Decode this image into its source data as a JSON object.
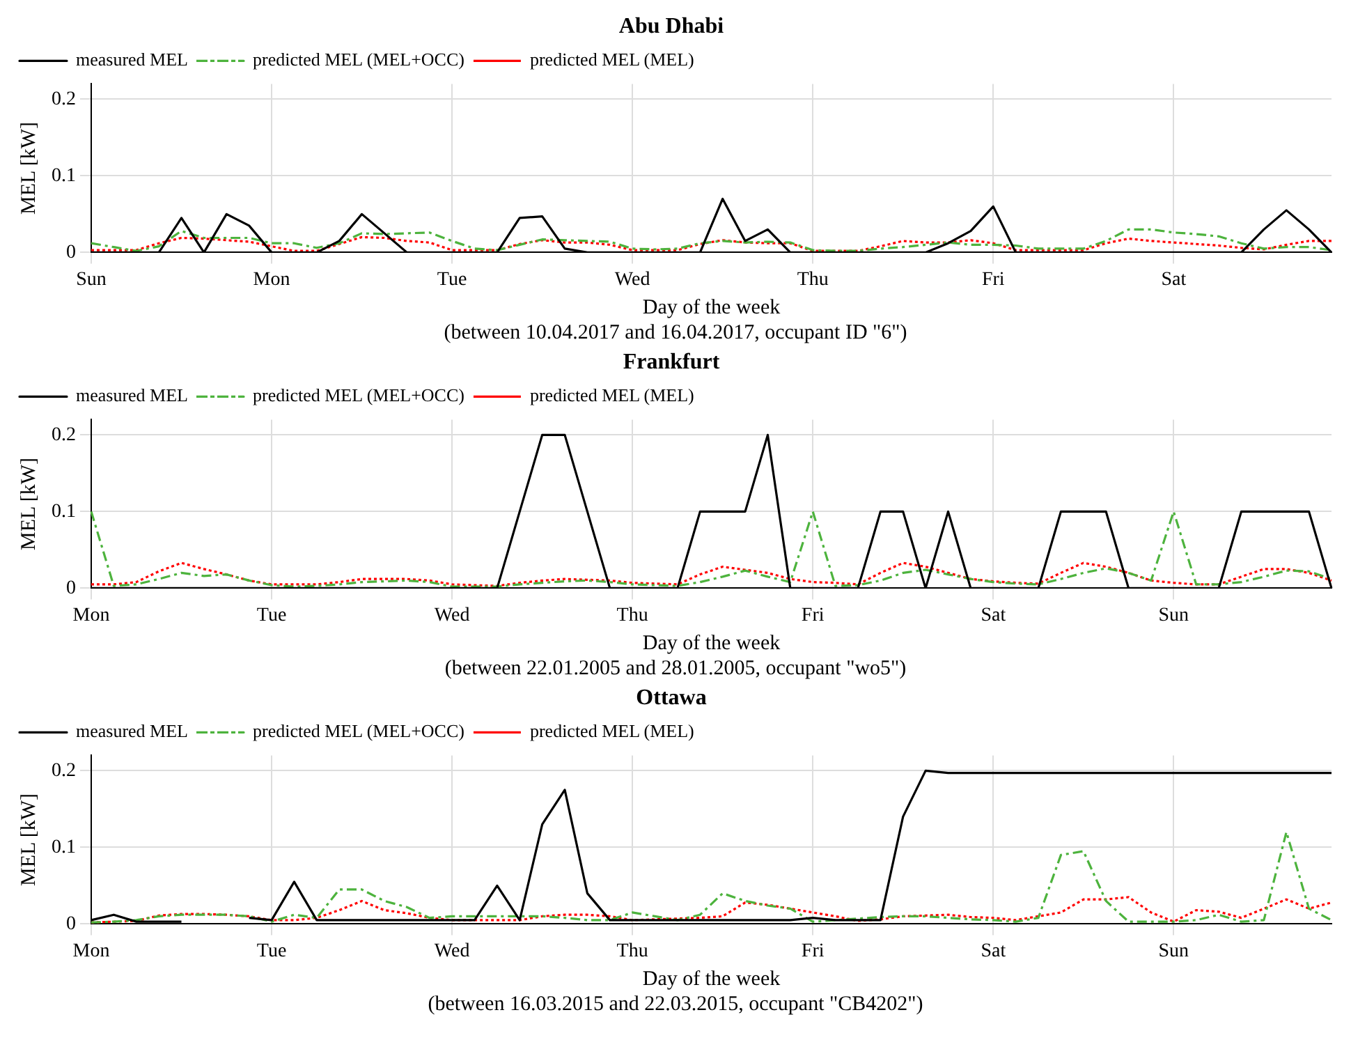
{
  "chart_data": [
    {
      "type": "line",
      "title": "Abu Dhabi",
      "xlabel": "Day of the week",
      "ylabel": "MEL [kW]",
      "annotations": [
        "(between 10.04.2017 and 16.04.2017, occupant ID \"6\")"
      ],
      "categories": [
        "Sun",
        null,
        null,
        null,
        null,
        null,
        null,
        null,
        "Mon",
        null,
        null,
        null,
        null,
        null,
        null,
        null,
        "Tue",
        null,
        null,
        null,
        null,
        null,
        null,
        null,
        "Wed",
        null,
        null,
        null,
        null,
        null,
        null,
        null,
        "Thu",
        null,
        null,
        null,
        null,
        null,
        null,
        null,
        "Fri",
        null,
        null,
        null,
        null,
        null,
        null,
        null,
        "Sat",
        null,
        null,
        null,
        null,
        null,
        null,
        null
      ],
      "ylim": [
        0,
        0.22
      ],
      "yticks": [
        0,
        0.1,
        0.2
      ],
      "grid": true,
      "legend": "top left",
      "series": [
        {
          "name": "measured MEL",
          "color": "#000000",
          "line_style": "solid",
          "values": [
            0,
            0,
            0,
            0,
            0.045,
            0,
            0.05,
            0.035,
            0,
            0,
            0,
            0.015,
            0.05,
            0.025,
            0,
            0,
            0,
            0,
            0,
            0.045,
            0.047,
            0.005,
            0,
            0,
            0,
            0,
            0,
            0,
            0.07,
            0.015,
            0.03,
            0,
            0,
            0,
            0,
            0,
            0,
            0,
            0.012,
            0.028,
            0.06,
            0,
            0,
            0,
            0,
            0,
            0,
            0,
            0,
            0,
            0,
            0,
            0.03,
            0.055,
            0.03,
            0
          ]
        },
        {
          "name": "predicted MEL (MEL+OCC)",
          "color": "#4db33d",
          "line_style": "dashed",
          "values": [
            0.012,
            0.007,
            0.002,
            0.008,
            0.028,
            0.019,
            0.019,
            0.019,
            0.012,
            0.012,
            0.006,
            0.012,
            0.025,
            0.024,
            0.025,
            0.026,
            0.015,
            0.005,
            0.003,
            0.01,
            0.017,
            0.016,
            0.015,
            0.014,
            0.005,
            0.004,
            0.005,
            0.012,
            0.015,
            0.013,
            0.014,
            0.013,
            0.003,
            0.002,
            0.002,
            0.005,
            0.007,
            0.01,
            0.013,
            0.01,
            0.01,
            0.009,
            0.005,
            0.005,
            0.005,
            0.015,
            0.03,
            0.03,
            0.026,
            0.024,
            0.021,
            0.012,
            0.005,
            0.007,
            0.007,
            0.003
          ]
        },
        {
          "name": "predicted MEL (MEL)",
          "color": "#ff0000",
          "line_style": "dotted",
          "values": [
            0.003,
            0.003,
            0.003,
            0.012,
            0.019,
            0.018,
            0.016,
            0.014,
            0.008,
            0.002,
            0.002,
            0.011,
            0.02,
            0.019,
            0.015,
            0.013,
            0.003,
            0.003,
            0.003,
            0.011,
            0.016,
            0.013,
            0.013,
            0.01,
            0.003,
            0.003,
            0.003,
            0.011,
            0.016,
            0.013,
            0.012,
            0.012,
            0.002,
            0.002,
            0.002,
            0.008,
            0.015,
            0.013,
            0.013,
            0.016,
            0.012,
            0.003,
            0.003,
            0.003,
            0.003,
            0.012,
            0.018,
            0.015,
            0.013,
            0.011,
            0.009,
            0.006,
            0.004,
            0.01,
            0.015,
            0.015
          ]
        }
      ]
    },
    {
      "type": "line",
      "title": "Frankfurt",
      "xlabel": "Day of the week",
      "ylabel": "MEL [kW]",
      "annotations": [
        "(between 22.01.2005 and 28.01.2005, occupant \"wo5\")"
      ],
      "categories": [
        "Mon",
        null,
        null,
        null,
        null,
        null,
        null,
        null,
        "Tue",
        null,
        null,
        null,
        null,
        null,
        null,
        null,
        "Wed",
        null,
        null,
        null,
        null,
        null,
        null,
        null,
        "Thu",
        null,
        null,
        null,
        null,
        null,
        null,
        null,
        "Fri",
        null,
        null,
        null,
        null,
        null,
        null,
        null,
        "Sat",
        null,
        null,
        null,
        null,
        null,
        null,
        null,
        "Sun",
        null,
        null,
        null,
        null,
        null,
        null,
        null
      ],
      "ylim": [
        0,
        0.22
      ],
      "yticks": [
        0,
        0.1,
        0.2
      ],
      "grid": true,
      "legend": "top left",
      "series": [
        {
          "name": "measured MEL",
          "color": "#000000",
          "line_style": "solid",
          "values": [
            0,
            0,
            0,
            0,
            0,
            0,
            0,
            0,
            0,
            0,
            0,
            0,
            0,
            0,
            0,
            0,
            0,
            0,
            0,
            0.1,
            0.2,
            0.2,
            0.1,
            0,
            0,
            0,
            0,
            0.1,
            0.1,
            0.1,
            0.2,
            0,
            0,
            0,
            0,
            0.1,
            0.1,
            0,
            0.1,
            0,
            0,
            0,
            0,
            0.1,
            0.1,
            0.1,
            0,
            0,
            0,
            0,
            0,
            0.1,
            0.1,
            0.1,
            0.1,
            0
          ]
        },
        {
          "name": "predicted MEL (MEL+OCC)",
          "color": "#4db33d",
          "line_style": "dashed",
          "values": [
            0.1,
            0.003,
            0.005,
            0.012,
            0.02,
            0.016,
            0.018,
            0.01,
            0.004,
            0.002,
            0.003,
            0.005,
            0.008,
            0.009,
            0.01,
            0.008,
            0.002,
            0.002,
            0.002,
            0.005,
            0.007,
            0.009,
            0.01,
            0.008,
            0.005,
            0.004,
            0.003,
            0.008,
            0.015,
            0.023,
            0.015,
            0.008,
            0.1,
            0.003,
            0.004,
            0.01,
            0.02,
            0.024,
            0.018,
            0.012,
            0.008,
            0.006,
            0.005,
            0.012,
            0.02,
            0.026,
            0.02,
            0.01,
            0.1,
            0.005,
            0.005,
            0.008,
            0.015,
            0.023,
            0.022,
            0.012
          ]
        },
        {
          "name": "predicted MEL (MEL)",
          "color": "#ff0000",
          "line_style": "dotted",
          "values": [
            0.005,
            0.005,
            0.008,
            0.022,
            0.033,
            0.025,
            0.018,
            0.01,
            0.005,
            0.005,
            0.005,
            0.008,
            0.012,
            0.012,
            0.012,
            0.01,
            0.005,
            0.004,
            0.003,
            0.007,
            0.01,
            0.012,
            0.011,
            0.01,
            0.007,
            0.006,
            0.005,
            0.018,
            0.028,
            0.024,
            0.02,
            0.012,
            0.008,
            0.007,
            0.005,
            0.02,
            0.033,
            0.028,
            0.02,
            0.012,
            0.009,
            0.007,
            0.006,
            0.02,
            0.033,
            0.028,
            0.02,
            0.01,
            0.007,
            0.005,
            0.005,
            0.015,
            0.025,
            0.025,
            0.02,
            0.01
          ]
        }
      ]
    },
    {
      "type": "line",
      "title": "Ottawa",
      "xlabel": "Day of the week",
      "ylabel": "MEL [kW]",
      "annotations": [
        "(between 16.03.2015 and 22.03.2015, occupant \"CB4202\")"
      ],
      "categories": [
        "Mon",
        null,
        null,
        null,
        null,
        null,
        null,
        null,
        "Tue",
        null,
        null,
        null,
        null,
        null,
        null,
        null,
        "Wed",
        null,
        null,
        null,
        null,
        null,
        null,
        null,
        "Thu",
        null,
        null,
        null,
        null,
        null,
        null,
        null,
        "Fri",
        null,
        null,
        null,
        null,
        null,
        null,
        null,
        "Sat",
        null,
        null,
        null,
        null,
        null,
        null,
        null,
        "Sun",
        null,
        null,
        null,
        null,
        null,
        null,
        null
      ],
      "ylim": [
        0,
        0.22
      ],
      "yticks": [
        0,
        0.1,
        0.2
      ],
      "grid": true,
      "legend": "top left",
      "series": [
        {
          "name": "measured MEL",
          "color": "#000000",
          "line_style": "solid",
          "values": [
            0.005,
            0.012,
            0.003,
            0.003,
            0.003,
            null,
            null,
            0.008,
            0.005,
            0.055,
            0.005,
            0.005,
            0.005,
            0.005,
            0.005,
            0.005,
            0.005,
            0.005,
            0.05,
            0.005,
            0.13,
            0.175,
            0.04,
            0.005,
            0.005,
            0.005,
            0.005,
            0.005,
            0.005,
            0.005,
            0.005,
            0.005,
            0.008,
            0.005,
            0.005,
            0.005,
            0.14,
            0.2,
            0.197,
            0.197,
            0.197,
            0.197,
            0.197,
            0.197,
            0.197,
            0.197,
            0.197,
            0.197,
            0.197,
            0.197,
            0.197,
            0.197,
            0.197,
            0.197,
            0.197,
            0.197
          ]
        },
        {
          "name": "predicted MEL (MEL+OCC)",
          "color": "#4db33d",
          "line_style": "dashed",
          "values": [
            0.002,
            0.003,
            0.005,
            0.01,
            0.012,
            0.012,
            0.012,
            0.01,
            0.003,
            0.012,
            0.008,
            0.045,
            0.045,
            0.03,
            0.022,
            0.008,
            0.01,
            0.01,
            0.01,
            0.01,
            0.01,
            0.008,
            0.005,
            0.005,
            0.015,
            0.01,
            0.005,
            0.012,
            0.04,
            0.03,
            0.024,
            0.02,
            0.003,
            0.005,
            0.007,
            0.009,
            0.01,
            0.01,
            0.008,
            0.006,
            0.005,
            0.003,
            0.008,
            0.09,
            0.095,
            0.03,
            0.003,
            0.003,
            0.003,
            0.005,
            0.012,
            0.003,
            0.005,
            0.12,
            0.02,
            0.005
          ]
        },
        {
          "name": "predicted MEL (MEL)",
          "color": "#ff0000",
          "line_style": "dotted",
          "values": [
            0.002,
            0.003,
            0.004,
            0.011,
            0.013,
            0.013,
            0.012,
            0.01,
            0.005,
            0.005,
            0.008,
            0.018,
            0.03,
            0.018,
            0.014,
            0.008,
            0.005,
            0.005,
            0.005,
            0.005,
            0.01,
            0.012,
            0.012,
            0.01,
            0.005,
            0.006,
            0.007,
            0.008,
            0.01,
            0.028,
            0.025,
            0.02,
            0.015,
            0.01,
            0.004,
            0.006,
            0.01,
            0.011,
            0.012,
            0.009,
            0.008,
            0.005,
            0.01,
            0.015,
            0.032,
            0.032,
            0.035,
            0.015,
            0.003,
            0.018,
            0.016,
            0.008,
            0.02,
            0.032,
            0.02,
            0.028
          ]
        }
      ]
    }
  ]
}
